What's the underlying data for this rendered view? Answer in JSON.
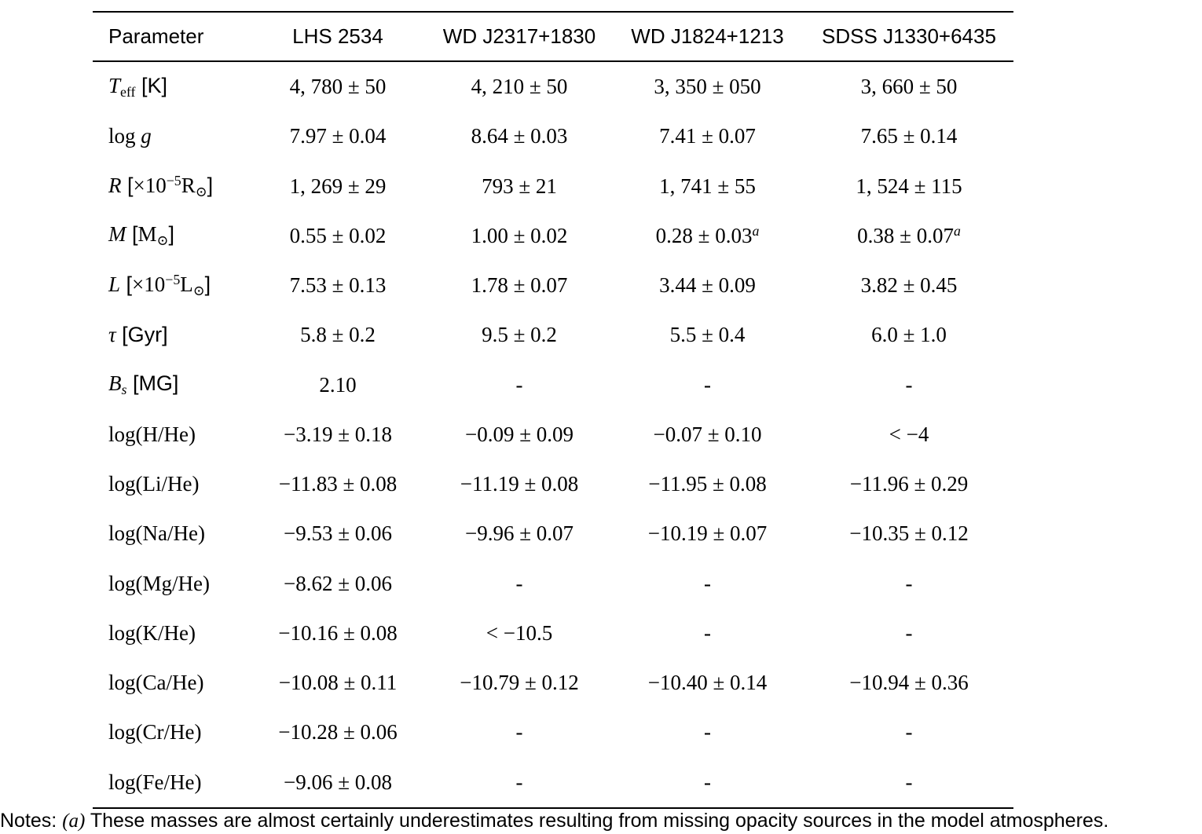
{
  "table": {
    "headers": [
      "Parameter",
      "LHS 2534",
      "WD J2317+1830",
      "WD J1824+1213",
      "SDSS J1330+6435"
    ],
    "rows": [
      {
        "param_name": "teff",
        "param": [
          {
            "t": "T",
            "s": "mi"
          },
          {
            "t": "eff",
            "s": "sub"
          },
          {
            "t": " [K]",
            "s": "sf"
          }
        ],
        "values": [
          "4, 780 ± 50",
          "4, 210 ± 50",
          "3, 350 ± 050",
          "3, 660 ± 50"
        ]
      },
      {
        "param_name": "logg",
        "param": [
          {
            "t": "log ",
            "s": "rm"
          },
          {
            "t": "g",
            "s": "mi"
          }
        ],
        "values": [
          "7.97 ± 0.04",
          "8.64 ± 0.03",
          "7.41 ± 0.07",
          "7.65 ± 0.14"
        ]
      },
      {
        "param_name": "radius",
        "param": [
          {
            "t": "R",
            "s": "mi"
          },
          {
            "t": " [",
            "s": "sf"
          },
          {
            "t": "×10",
            "s": "rm"
          },
          {
            "t": "−5",
            "s": "sup"
          },
          {
            "t": "R",
            "s": "rm"
          },
          {
            "t": "⊙",
            "s": "sub"
          },
          {
            "t": "]",
            "s": "sf"
          }
        ],
        "values": [
          "1, 269 ± 29",
          "793 ± 21",
          "1, 741 ± 55",
          "1, 524 ± 115"
        ]
      },
      {
        "param_name": "mass",
        "param": [
          {
            "t": "M",
            "s": "mi"
          },
          {
            "t": " [",
            "s": "sf"
          },
          {
            "t": "M",
            "s": "rm"
          },
          {
            "t": "⊙",
            "s": "sub"
          },
          {
            "t": "]",
            "s": "sf"
          }
        ],
        "values": [
          "0.55 ± 0.02",
          "1.00 ± 0.02",
          "0.28 ± 0.03^a",
          "0.38 ± 0.07^a"
        ]
      },
      {
        "param_name": "luminosity",
        "param": [
          {
            "t": "L",
            "s": "mi"
          },
          {
            "t": " [",
            "s": "sf"
          },
          {
            "t": "×10",
            "s": "rm"
          },
          {
            "t": "−5",
            "s": "sup"
          },
          {
            "t": "L",
            "s": "rm"
          },
          {
            "t": "⊙",
            "s": "sub"
          },
          {
            "t": "]",
            "s": "sf"
          }
        ],
        "values": [
          "7.53 ± 0.13",
          "1.78 ± 0.07",
          "3.44 ± 0.09",
          "3.82 ± 0.45"
        ]
      },
      {
        "param_name": "age",
        "param": [
          {
            "t": "τ",
            "s": "mi"
          },
          {
            "t": " [Gyr]",
            "s": "sf"
          }
        ],
        "values": [
          "5.8 ± 0.2",
          "9.5 ± 0.2",
          "5.5 ± 0.4",
          "6.0 ± 1.0"
        ]
      },
      {
        "param_name": "bfield",
        "param": [
          {
            "t": "B",
            "s": "mi"
          },
          {
            "t": "s",
            "s": "submi"
          },
          {
            "t": " [MG]",
            "s": "sf"
          }
        ],
        "values": [
          "2.10",
          "-",
          "-",
          "-"
        ]
      },
      {
        "param_name": "log-h-he",
        "param": [
          {
            "t": "log(H/He)",
            "s": "rm"
          }
        ],
        "values": [
          "−3.19 ± 0.18",
          "−0.09 ± 0.09",
          "−0.07 ± 0.10",
          "< −4"
        ]
      },
      {
        "param_name": "log-li-he",
        "param": [
          {
            "t": "log(Li/He)",
            "s": "rm"
          }
        ],
        "values": [
          "−11.83 ± 0.08",
          "−11.19 ± 0.08",
          "−11.95 ± 0.08",
          "−11.96 ± 0.29"
        ]
      },
      {
        "param_name": "log-na-he",
        "param": [
          {
            "t": "log(Na/He)",
            "s": "rm"
          }
        ],
        "values": [
          "−9.53 ± 0.06",
          "−9.96 ± 0.07",
          "−10.19 ± 0.07",
          "−10.35 ± 0.12"
        ]
      },
      {
        "param_name": "log-mg-he",
        "param": [
          {
            "t": "log(Mg/He)",
            "s": "rm"
          }
        ],
        "values": [
          "−8.62 ± 0.06",
          "-",
          "-",
          "-"
        ]
      },
      {
        "param_name": "log-k-he",
        "param": [
          {
            "t": "log(K/He)",
            "s": "rm"
          }
        ],
        "values": [
          "−10.16 ± 0.08",
          "< −10.5",
          "-",
          "-"
        ]
      },
      {
        "param_name": "log-ca-he",
        "param": [
          {
            "t": "log(Ca/He)",
            "s": "rm"
          }
        ],
        "values": [
          "−10.08 ± 0.11",
          "−10.79 ± 0.12",
          "−10.40 ± 0.14",
          "−10.94 ± 0.36"
        ]
      },
      {
        "param_name": "log-cr-he",
        "param": [
          {
            "t": "log(Cr/He)",
            "s": "rm"
          }
        ],
        "values": [
          "−10.28 ± 0.06",
          "-",
          "-",
          "-"
        ]
      },
      {
        "param_name": "log-fe-he",
        "param": [
          {
            "t": "log(Fe/He)",
            "s": "rm"
          }
        ],
        "values": [
          "−9.06 ± 0.08",
          "-",
          "-",
          "-"
        ]
      }
    ]
  },
  "notes": {
    "prefix": "Notes: ",
    "marker": "(a)",
    "text": " These masses are almost certainly underestimates resulting from missing opacity sources in the model atmospheres."
  }
}
